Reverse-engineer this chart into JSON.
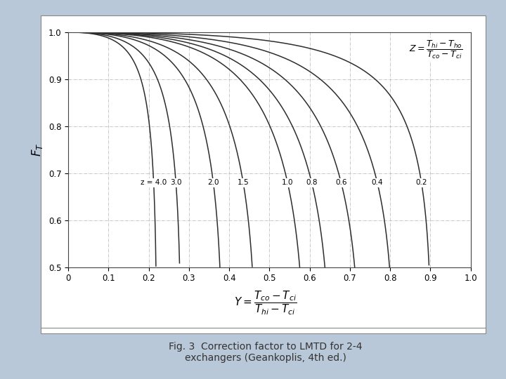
{
  "z_values": [
    4.0,
    3.0,
    2.0,
    1.5,
    1.0,
    0.8,
    0.6,
    0.4,
    0.2
  ],
  "z_labels": [
    "4.0",
    "3.0",
    "2.0",
    "1.5",
    "1.0",
    "0.8",
    "0.6",
    "0.4",
    "0.2"
  ],
  "xlim": [
    0.0,
    1.0
  ],
  "ylim": [
    0.5,
    1.0
  ],
  "curve_color": "#2d2d2d",
  "grid_color": "#aaaaaa",
  "bg_color": "#ffffff",
  "outer_bg": "#b8c8d8",
  "caption_color": "#333333",
  "xticks": [
    0.0,
    0.1,
    0.2,
    0.3,
    0.4,
    0.5,
    0.6,
    0.7,
    0.8,
    0.9,
    1.0
  ],
  "yticks": [
    0.5,
    0.6,
    0.7,
    0.8,
    0.9,
    1.0
  ],
  "caption": "Fig. 3  Correction factor to LMTD for 2-4\nexchangers (Geankoplis, 4th ed.)",
  "figsize": [
    7.2,
    5.4
  ],
  "dpi": 100
}
